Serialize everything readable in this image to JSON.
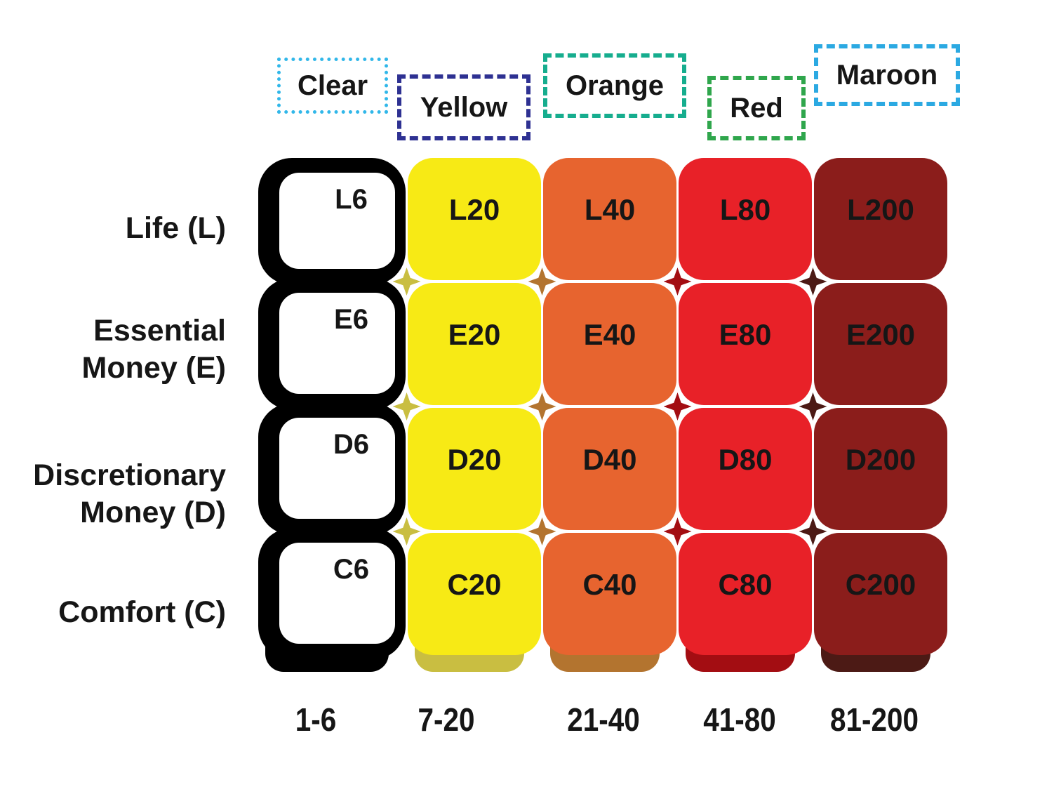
{
  "legend": {
    "items": [
      {
        "label": "Clear",
        "border_color": "#31b7e9",
        "border_style": "dotted"
      },
      {
        "label": "Yellow",
        "border_color": "#2e3192",
        "border_style": "dashed"
      },
      {
        "label": "Orange",
        "border_color": "#16ad8e",
        "border_style": "dashed"
      },
      {
        "label": "Red",
        "border_color": "#2fa64c",
        "border_style": "dashed"
      },
      {
        "label": "Maroon",
        "border_color": "#2ba9e2",
        "border_style": "dashed"
      }
    ]
  },
  "matrix": {
    "row_labels": [
      [
        "Life (L)"
      ],
      [
        "Essential",
        "Money (E)"
      ],
      [
        "Discretionary",
        "Money (D)"
      ],
      [
        "Comfort (C)"
      ]
    ],
    "columns": [
      {
        "name": "Clear",
        "range": "1-6",
        "cell_color": "#ffffff",
        "shadow_color": "#000000"
      },
      {
        "name": "Yellow",
        "range": "7-20",
        "cell_color": "#f7ea15",
        "shadow_color": "#c9be41"
      },
      {
        "name": "Orange",
        "range": "21-40",
        "cell_color": "#e7642f",
        "shadow_color": "#b3742f"
      },
      {
        "name": "Red",
        "range": "41-80",
        "cell_color": "#e82128",
        "shadow_color": "#a30d12"
      },
      {
        "name": "Maroon",
        "range": "81-200",
        "cell_color": "#8b1d1b",
        "shadow_color": "#4c1a15"
      }
    ],
    "cells": [
      [
        "L6",
        "L20",
        "L40",
        "L80",
        "L200"
      ],
      [
        "E6",
        "E20",
        "E40",
        "E80",
        "E200"
      ],
      [
        "D6",
        "D20",
        "D40",
        "D80",
        "D200"
      ],
      [
        "C6",
        "C20",
        "C40",
        "C80",
        "C200"
      ]
    ],
    "text_color": "#161616"
  },
  "chart_data": {
    "type": "table",
    "title": "",
    "row_categories": [
      "Life (L)",
      "Essential Money (E)",
      "Discretionary Money (D)",
      "Comfort (C)"
    ],
    "column_categories": [
      "Clear",
      "Yellow",
      "Orange",
      "Red",
      "Maroon"
    ],
    "column_value_ranges": [
      "1-6",
      "7-20",
      "21-40",
      "41-80",
      "81-200"
    ],
    "cells": [
      [
        "L6",
        "L20",
        "L40",
        "L80",
        "L200"
      ],
      [
        "E6",
        "E20",
        "E40",
        "E80",
        "E200"
      ],
      [
        "D6",
        "D20",
        "D40",
        "D80",
        "D200"
      ],
      [
        "C6",
        "C20",
        "C40",
        "C80",
        "C200"
      ]
    ]
  }
}
